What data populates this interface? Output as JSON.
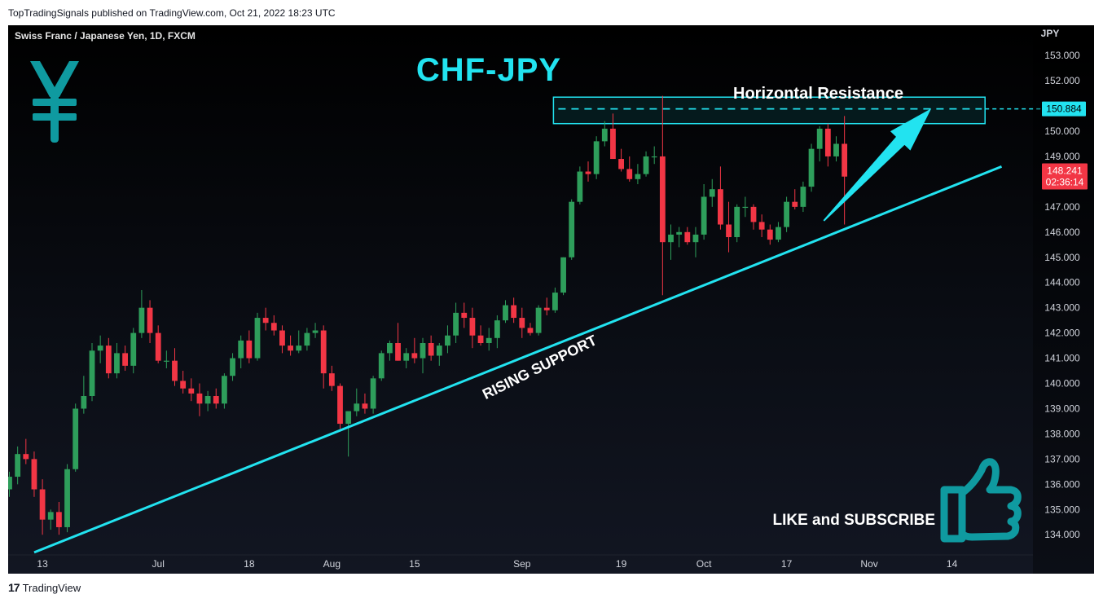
{
  "header": {
    "published": "TopTradingSignals published on TradingView.com, Oct 21, 2022 18:23 UTC"
  },
  "footer": {
    "brand": "TradingView",
    "logo": "17"
  },
  "chart_data": {
    "type": "candlestick",
    "symbol": "Swiss Franc / Japanese Yen, 1D, FXCM",
    "title": "CHF-JPY",
    "currency_label": "JPY",
    "ylim": [
      133.2,
      154.2
    ],
    "y_ticks": [
      "134.000",
      "135.000",
      "136.000",
      "137.000",
      "138.000",
      "139.000",
      "140.000",
      "141.000",
      "142.000",
      "143.000",
      "144.000",
      "145.000",
      "146.000",
      "147.000",
      "148.000",
      "149.000",
      "150.000",
      "151.000",
      "152.000",
      "153.000"
    ],
    "x_ticks": [
      {
        "label": "13",
        "index": 4
      },
      {
        "label": "Jul",
        "index": 18
      },
      {
        "label": "18",
        "index": 29
      },
      {
        "label": "Aug",
        "index": 39
      },
      {
        "label": "15",
        "index": 49
      },
      {
        "label": "Sep",
        "index": 62
      },
      {
        "label": "19",
        "index": 74
      },
      {
        "label": "Oct",
        "index": 84
      },
      {
        "label": "17",
        "index": 94
      },
      {
        "label": "Nov",
        "index": 104
      },
      {
        "label": "14",
        "index": 114
      }
    ],
    "price_labels": {
      "resistance": "150.884",
      "last": "148.241",
      "countdown": "02:36:14"
    },
    "colors": {
      "up": "#26a69a",
      "up_body": "#2e9e5b",
      "down": "#f23645",
      "line": "#22e3f0",
      "resistance_box": "#22e3f0",
      "yen": "#0f9aa0"
    },
    "annotations": {
      "resistance": "Horizontal Resistance",
      "support": "RISING SUPPORT",
      "cta": "LIKE and SUBSCRIBE"
    },
    "resistance_zone": {
      "low": 150.3,
      "high": 151.35,
      "level": 150.884,
      "start_index": 66,
      "end_index": 118
    },
    "support_line": {
      "start": {
        "index": 3,
        "price": 133.3
      },
      "end": {
        "index": 120,
        "price": 148.6
      }
    },
    "arrow": {
      "start": {
        "index": 98.5,
        "price": 146.45
      },
      "end": {
        "index": 111.5,
        "price": 150.9
      }
    },
    "candles": [
      [
        135.8,
        136.5,
        135.5,
        136.3
      ],
      [
        136.3,
        137.5,
        136.0,
        137.2
      ],
      [
        137.2,
        137.8,
        136.8,
        137.0
      ],
      [
        137.0,
        137.3,
        135.5,
        135.8
      ],
      [
        135.8,
        136.2,
        134.0,
        134.6
      ],
      [
        134.6,
        135.0,
        134.2,
        134.9
      ],
      [
        134.9,
        135.3,
        134.0,
        134.3
      ],
      [
        134.3,
        136.8,
        134.1,
        136.6
      ],
      [
        136.6,
        139.2,
        136.5,
        139.0
      ],
      [
        139.0,
        140.3,
        138.8,
        139.5
      ],
      [
        139.5,
        141.6,
        139.3,
        141.3
      ],
      [
        141.3,
        141.9,
        140.8,
        141.5
      ],
      [
        141.5,
        141.8,
        140.2,
        140.4
      ],
      [
        140.4,
        141.6,
        140.2,
        141.2
      ],
      [
        141.2,
        141.5,
        140.5,
        140.7
      ],
      [
        140.7,
        142.2,
        140.4,
        142.0
      ],
      [
        142.0,
        143.7,
        141.8,
        143.0
      ],
      [
        143.0,
        143.3,
        141.6,
        142.0
      ],
      [
        142.0,
        142.3,
        140.8,
        140.9
      ],
      [
        140.9,
        141.3,
        140.6,
        140.9
      ],
      [
        140.9,
        141.4,
        139.9,
        140.1
      ],
      [
        140.1,
        140.5,
        139.6,
        139.8
      ],
      [
        139.8,
        140.2,
        139.3,
        139.6
      ],
      [
        139.6,
        140.0,
        138.7,
        139.2
      ],
      [
        139.2,
        139.7,
        138.9,
        139.5
      ],
      [
        139.5,
        139.8,
        139.0,
        139.2
      ],
      [
        139.2,
        140.4,
        139.0,
        140.3
      ],
      [
        140.3,
        141.2,
        140.1,
        141.0
      ],
      [
        141.0,
        141.9,
        140.6,
        141.7
      ],
      [
        141.7,
        142.1,
        140.8,
        141.0
      ],
      [
        141.0,
        142.8,
        140.9,
        142.6
      ],
      [
        142.6,
        143.0,
        142.1,
        142.4
      ],
      [
        142.4,
        142.7,
        141.9,
        142.1
      ],
      [
        142.1,
        142.3,
        141.2,
        141.5
      ],
      [
        141.5,
        141.9,
        141.1,
        141.3
      ],
      [
        141.3,
        142.1,
        141.2,
        141.5
      ],
      [
        141.5,
        142.2,
        141.3,
        142.0
      ],
      [
        142.0,
        142.4,
        141.8,
        142.1
      ],
      [
        142.1,
        142.3,
        139.8,
        140.4
      ],
      [
        140.4,
        140.7,
        139.7,
        139.9
      ],
      [
        139.9,
        140.0,
        138.2,
        138.4
      ],
      [
        138.4,
        138.8,
        137.1,
        138.9
      ],
      [
        138.9,
        139.8,
        138.7,
        139.2
      ],
      [
        139.2,
        139.6,
        138.8,
        139.0
      ],
      [
        139.0,
        140.3,
        138.8,
        140.2
      ],
      [
        140.2,
        141.3,
        140.1,
        141.2
      ],
      [
        141.2,
        141.7,
        140.9,
        141.6
      ],
      [
        141.6,
        142.4,
        140.9,
        140.9
      ],
      [
        140.9,
        141.4,
        140.6,
        141.2
      ],
      [
        141.2,
        141.8,
        140.8,
        141.0
      ],
      [
        141.0,
        141.8,
        140.4,
        141.6
      ],
      [
        141.6,
        141.9,
        140.9,
        141.1
      ],
      [
        141.1,
        141.6,
        140.7,
        141.5
      ],
      [
        141.5,
        142.3,
        141.2,
        141.9
      ],
      [
        141.9,
        143.2,
        141.6,
        142.8
      ],
      [
        142.8,
        143.2,
        142.2,
        142.6
      ],
      [
        142.6,
        143.0,
        141.4,
        141.9
      ],
      [
        141.9,
        142.3,
        141.5,
        141.6
      ],
      [
        141.6,
        142.2,
        141.3,
        141.8
      ],
      [
        141.8,
        142.7,
        141.4,
        142.5
      ],
      [
        142.5,
        143.3,
        142.4,
        143.1
      ],
      [
        143.1,
        143.4,
        142.4,
        142.6
      ],
      [
        142.6,
        143.0,
        141.8,
        142.2
      ],
      [
        142.2,
        142.4,
        141.9,
        142.0
      ],
      [
        142.0,
        143.1,
        141.9,
        143.0
      ],
      [
        143.0,
        143.4,
        142.7,
        142.9
      ],
      [
        142.9,
        143.8,
        142.8,
        143.6
      ],
      [
        143.6,
        145.0,
        143.5,
        145.0
      ],
      [
        145.0,
        147.3,
        144.9,
        147.2
      ],
      [
        147.2,
        148.6,
        147.1,
        148.4
      ],
      [
        148.4,
        148.8,
        148.0,
        148.3
      ],
      [
        148.3,
        149.8,
        148.1,
        149.6
      ],
      [
        149.6,
        150.4,
        149.4,
        150.1
      ],
      [
        150.1,
        150.7,
        148.9,
        148.9
      ],
      [
        148.9,
        149.3,
        148.4,
        148.5
      ],
      [
        148.5,
        149.0,
        148.0,
        148.1
      ],
      [
        148.1,
        148.7,
        147.9,
        148.3
      ],
      [
        148.3,
        149.2,
        148.2,
        149.0
      ],
      [
        149.0,
        149.4,
        148.7,
        149.0
      ],
      [
        149.0,
        151.4,
        143.5,
        145.6
      ],
      [
        145.6,
        146.3,
        144.9,
        145.9
      ],
      [
        145.9,
        146.2,
        145.4,
        146.0
      ],
      [
        146.0,
        146.2,
        145.5,
        145.6
      ],
      [
        145.6,
        146.2,
        145.0,
        145.9
      ],
      [
        145.9,
        147.9,
        145.7,
        147.4
      ],
      [
        147.4,
        148.1,
        147.0,
        147.7
      ],
      [
        147.7,
        148.6,
        146.1,
        146.3
      ],
      [
        146.3,
        147.2,
        145.2,
        145.8
      ],
      [
        145.8,
        147.1,
        145.6,
        147.0
      ],
      [
        147.0,
        147.4,
        146.6,
        147.0
      ],
      [
        147.0,
        147.1,
        146.1,
        146.4
      ],
      [
        146.4,
        146.7,
        145.8,
        146.1
      ],
      [
        146.1,
        146.3,
        145.5,
        145.7
      ],
      [
        145.7,
        146.4,
        145.6,
        146.2
      ],
      [
        146.2,
        147.4,
        146.0,
        147.2
      ],
      [
        147.2,
        147.7,
        146.9,
        147.0
      ],
      [
        147.0,
        148.0,
        146.8,
        147.8
      ],
      [
        147.8,
        149.5,
        147.6,
        149.3
      ],
      [
        149.3,
        150.2,
        148.8,
        150.1
      ],
      [
        150.1,
        150.3,
        148.6,
        149.0
      ],
      [
        149.0,
        149.8,
        148.8,
        149.5
      ],
      [
        149.5,
        150.6,
        146.3,
        148.2
      ]
    ]
  }
}
